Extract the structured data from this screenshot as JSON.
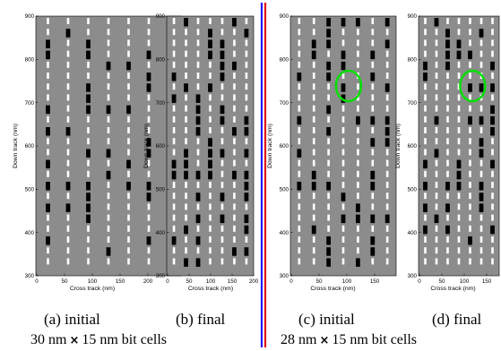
{
  "panels": [
    {
      "id": "a",
      "caption": "(a) initial",
      "xlabel": "Cross track (nm)",
      "ylabel": "Down track (nm)",
      "xticks": [
        "0",
        "50",
        "100",
        "150",
        "200"
      ],
      "yticks": [
        "300",
        "400",
        "500",
        "600",
        "700",
        "800",
        "900"
      ],
      "track_count": 7,
      "highlight": false
    },
    {
      "id": "b",
      "caption": "(b) final",
      "xlabel": "Cross track (nm)",
      "ylabel": "Down track (nm)",
      "xticks": [
        "0",
        "50",
        "100",
        "150",
        "200"
      ],
      "yticks": [
        "300",
        "400",
        "500",
        "600",
        "700",
        "800",
        "900"
      ],
      "track_count": 7,
      "highlight": false
    },
    {
      "id": "c",
      "caption": "(c) initial",
      "xlabel": "Cross track (nm)",
      "ylabel": "Down track (nm)",
      "xticks": [
        "0",
        "50",
        "100",
        "150"
      ],
      "yticks": [
        "300",
        "400",
        "500",
        "600",
        "700",
        "800",
        "900"
      ],
      "track_count": 7,
      "highlight": true
    },
    {
      "id": "d",
      "caption": "(d) final",
      "xlabel": "Cross track (nm)",
      "ylabel": "Down track (nm)",
      "xticks": [
        "0",
        "50",
        "100",
        "150"
      ],
      "yticks": [
        "300",
        "400",
        "500",
        "600",
        "700",
        "800",
        "900"
      ],
      "track_count": 7,
      "highlight": true
    }
  ],
  "groups": [
    {
      "size_a": "30 nm",
      "times": "×",
      "size_b": "15 nm bit cells"
    },
    {
      "size_a": "28 nm",
      "times": "×",
      "size_b": "15 nm bit cells"
    }
  ],
  "colors": {
    "plot_bg": "#8c8c8c",
    "bit_white": "#ffffff",
    "bit_black": "#000000",
    "highlight_circle": "#00e000",
    "divider_blue": "#1a1aff",
    "divider_red": "#e01010"
  }
}
